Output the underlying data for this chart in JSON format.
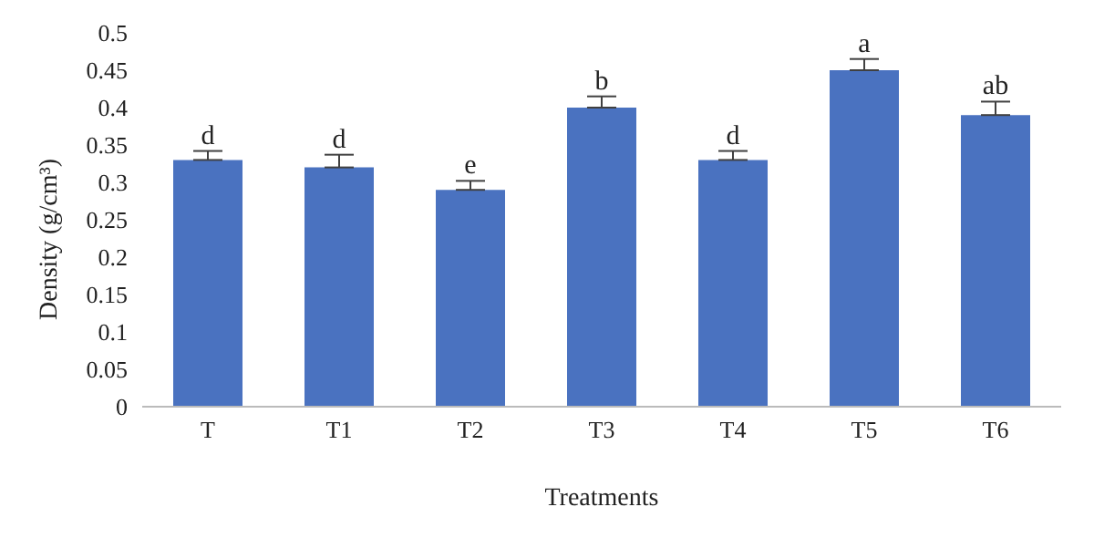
{
  "chart_data": {
    "type": "bar",
    "xlabel": "Treatments",
    "ylabel": "Density (g/cm³)",
    "categories": [
      "T",
      "T1",
      "T2",
      "T3",
      "T4",
      "T5",
      "T6"
    ],
    "values": [
      0.33,
      0.32,
      0.29,
      0.4,
      0.33,
      0.45,
      0.39
    ],
    "errors": [
      0.012,
      0.017,
      0.012,
      0.015,
      0.012,
      0.015,
      0.018
    ],
    "color": "#4a72c0",
    "ylim": [
      0,
      0.5
    ],
    "yticks": [
      0,
      0.05,
      0.1,
      0.15,
      0.2,
      0.25,
      0.3,
      0.35,
      0.4,
      0.45,
      0.5
    ],
    "grid": false,
    "legend": false,
    "annotations": [
      {
        "text": "d",
        "x": "T",
        "y": 0.342
      },
      {
        "text": "d",
        "x": "T1",
        "y": 0.337
      },
      {
        "text": "e",
        "x": "T2",
        "y": 0.302
      },
      {
        "text": "b",
        "x": "T3",
        "y": 0.415
      },
      {
        "text": "d",
        "x": "T4",
        "y": 0.342
      },
      {
        "text": "a",
        "x": "T5",
        "y": 0.465
      },
      {
        "text": "ab",
        "x": "T6",
        "y": 0.408
      }
    ]
  }
}
